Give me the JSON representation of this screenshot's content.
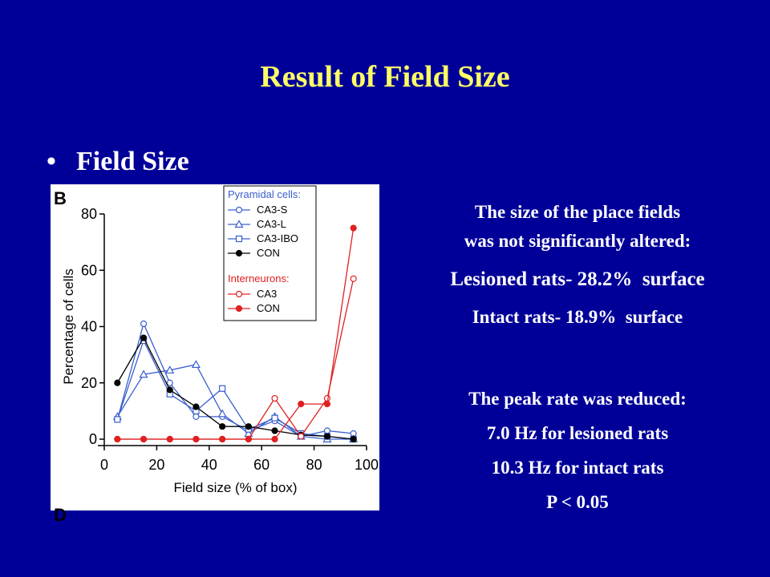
{
  "slide": {
    "title": "Result of Field Size",
    "bullet": "Field Size",
    "description": [
      "The size of the place fields",
      "was not significantly altered:",
      "Lesioned rats- 28.2%  surface",
      "Intact rats- 18.9%  surface"
    ],
    "peak": [
      "The peak rate was reduced:",
      "7.0 Hz for lesioned rats",
      "10.3 Hz for intact rats",
      "P < 0.05"
    ]
  },
  "chart_data": {
    "type": "line",
    "panel_label": "B",
    "next_panel_label": "D",
    "x_label": "Field size (% of box)",
    "y_label": "Percentage of cells",
    "x": [
      5,
      15,
      25,
      35,
      45,
      55,
      65,
      75,
      85,
      95
    ],
    "xlim": [
      0,
      100
    ],
    "xticks": [
      0,
      20,
      40,
      60,
      80,
      100
    ],
    "ylim": [
      0,
      80
    ],
    "yticks": [
      0,
      20,
      40,
      60,
      80
    ],
    "series_groups": [
      {
        "name": "Pyramidal cells:",
        "color": "#3a5fcd",
        "series": [
          {
            "name": "CA3-S",
            "color": "#3a5fcd",
            "marker": "circle-open",
            "values": [
              7,
              41,
              20,
              8,
              8,
              3,
              6.5,
              1,
              3,
              2
            ]
          },
          {
            "name": "CA3-L",
            "color": "#3a5fcd",
            "marker": "triangle-open",
            "values": [
              8,
              23,
              24.5,
              26.5,
              9,
              2,
              8,
              1,
              0,
              0
            ]
          },
          {
            "name": "CA3-IBO",
            "color": "#3a5fcd",
            "marker": "square-open",
            "values": [
              7,
              35,
              16,
              10,
              18,
              3.5,
              7.5,
              2,
              1,
              0
            ]
          },
          {
            "name": "CON",
            "color": "#000000",
            "marker": "circle-filled",
            "values": [
              20,
              36,
              17.5,
              11.5,
              4.5,
              4.5,
              3,
              1.5,
              1,
              0
            ]
          }
        ]
      },
      {
        "name": "Interneurons:",
        "color": "#e02020",
        "series": [
          {
            "name": "CA3",
            "color": "#e02020",
            "marker": "circle-open",
            "values": [
              0,
              0,
              0,
              0,
              0,
              0,
              14.5,
              1,
              14.5,
              57
            ]
          },
          {
            "name": "CON",
            "color": "#e02020",
            "marker": "circle-filled",
            "values": [
              0,
              0,
              0,
              0,
              0,
              0,
              0,
              12.5,
              12.5,
              75
            ]
          }
        ]
      }
    ]
  }
}
